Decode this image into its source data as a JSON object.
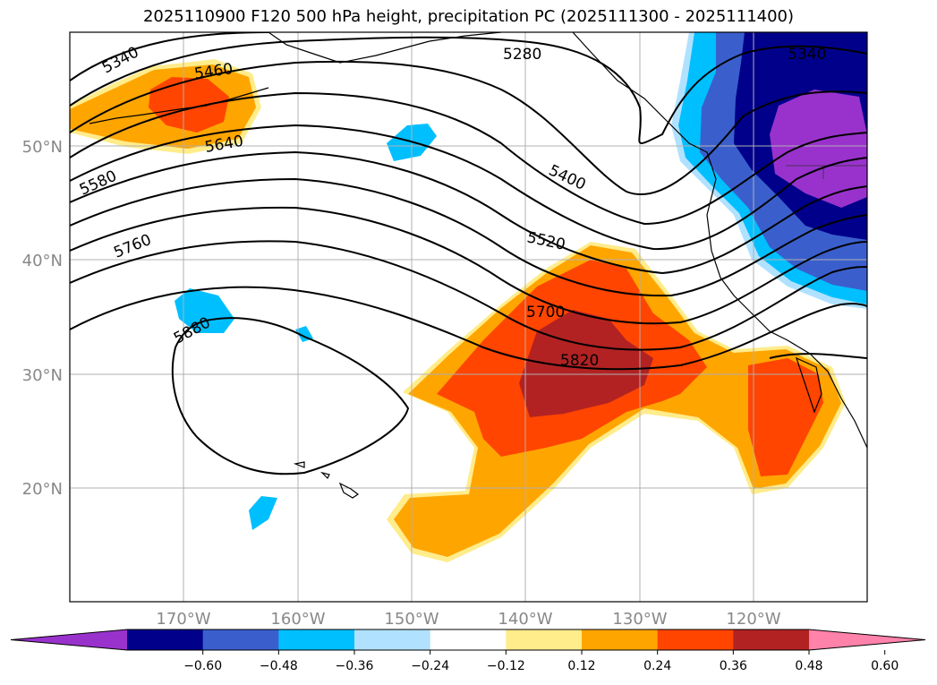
{
  "title": "2025110900 F120 500 hPa height, precipitation PC (2025111300 - 2025111400)",
  "lat_labels": [
    "50°N",
    "40°N",
    "30°N",
    "20°N"
  ],
  "lon_labels": [
    "170°W",
    "160°W",
    "150°W",
    "140°W",
    "130°W",
    "120°W"
  ],
  "contour_labels": [
    "5340",
    "5460",
    "5640",
    "5580",
    "5760",
    "5880",
    "5280",
    "5400",
    "5520",
    "5700",
    "5820",
    "5340"
  ],
  "colorbar": {
    "ticks": [
      "−0.60",
      "−0.48",
      "−0.36",
      "−0.24",
      "−0.12",
      "0.12",
      "0.24",
      "0.36",
      "0.48",
      "0.60"
    ],
    "colors": [
      "#9932cc",
      "#00008b",
      "#3a5fcd",
      "#00bfff",
      "#b0e2ff",
      "#ffffff",
      "#ffec8b",
      "#ffa500",
      "#ff4500",
      "#b22222",
      "#ff82ab"
    ]
  }
}
